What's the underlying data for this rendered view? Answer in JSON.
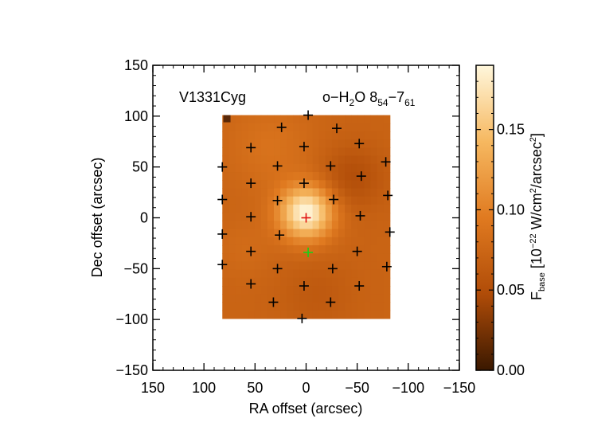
{
  "chart_data": {
    "type": "heatmap",
    "title": "",
    "object_label": "V1331Cyg",
    "line_label": {
      "species": "o−H",
      "sub1": "2",
      "mol_rest": "O 8",
      "sub2": "54",
      "dash": "−7",
      "sub3": "61"
    },
    "xlabel": "RA offset (arcsec)",
    "ylabel": "Dec offset (arcsec)",
    "xlim": [
      150,
      -150
    ],
    "ylim": [
      -150,
      150
    ],
    "xticks": [
      150,
      100,
      50,
      0,
      -50,
      -100,
      -150
    ],
    "yticks": [
      150,
      100,
      50,
      0,
      -50,
      -100,
      -150
    ],
    "xtick_labels": [
      "150",
      "100",
      "50",
      "0",
      "−50",
      "−100",
      "−150"
    ],
    "ytick_labels": [
      "150",
      "100",
      "50",
      "0",
      "−50",
      "−100",
      "−150"
    ],
    "map_extent": {
      "x": [
        82,
        -82
      ],
      "y": [
        -99,
        101
      ]
    },
    "peak": {
      "x": 0,
      "y": 0,
      "value": 0.19
    },
    "background_value": 0.072,
    "colorbar": {
      "label_main": "F",
      "label_sub": "base",
      "label_units_pre": " [10",
      "label_exp": "−22",
      "label_units_mid": " W/cm",
      "label_exp2": "2",
      "label_units_end": "/arcsec",
      "label_exp3": "2",
      "label_close": "]",
      "range": [
        0.0,
        0.19
      ],
      "ticks": [
        0.0,
        0.05,
        0.1,
        0.15
      ],
      "tick_labels": [
        "0.00",
        "0.05",
        "0.10",
        "0.15"
      ],
      "colors": [
        "#3a1800",
        "#b04c08",
        "#e07a20",
        "#f6b860",
        "#fff7dc"
      ]
    },
    "spaxels_black": [
      [
        -2,
        101
      ],
      [
        24,
        89
      ],
      [
        -30,
        88
      ],
      [
        -52,
        73
      ],
      [
        54,
        69
      ],
      [
        2,
        70
      ],
      [
        -78,
        55
      ],
      [
        82,
        50
      ],
      [
        28,
        51
      ],
      [
        -24,
        51
      ],
      [
        -54,
        41
      ],
      [
        54,
        34
      ],
      [
        2,
        34
      ],
      [
        -80,
        22
      ],
      [
        82,
        18
      ],
      [
        -27,
        18
      ],
      [
        28,
        17
      ],
      [
        54,
        1
      ],
      [
        -53,
        2
      ],
      [
        -82,
        -14
      ],
      [
        82,
        -16
      ],
      [
        26,
        -17
      ],
      [
        -50,
        -33
      ],
      [
        54,
        -33
      ],
      [
        -79,
        -48
      ],
      [
        82,
        -46
      ],
      [
        28,
        -50
      ],
      [
        -26,
        -50
      ],
      [
        -52,
        -67
      ],
      [
        54,
        -65
      ],
      [
        2,
        -67
      ],
      [
        -24,
        -83
      ],
      [
        32,
        -83
      ],
      [
        4,
        -99
      ]
    ],
    "spaxel_center_red": [
      0,
      0
    ],
    "spaxel_green": [
      -2,
      -34
    ],
    "corner_pixel": [
      79,
      99
    ]
  }
}
